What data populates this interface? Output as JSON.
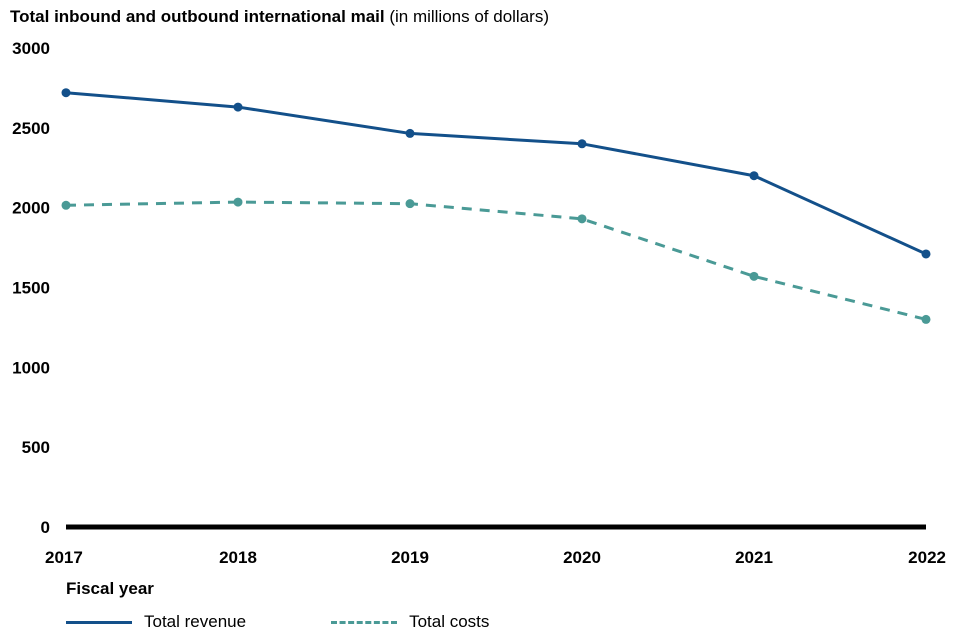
{
  "title": {
    "bold": "Total inbound and outbound international mail",
    "normal": "(in millions of dollars)"
  },
  "colors": {
    "revenue": "#13508a",
    "costs": "#4a9a96",
    "axis": "#000000"
  },
  "chart_data": {
    "type": "line",
    "x": [
      "2017",
      "2018",
      "2019",
      "2020",
      "2021",
      "2022"
    ],
    "xlabel": "Fiscal year",
    "ylabel": "",
    "ylim": [
      0,
      3000
    ],
    "yticks": [
      0,
      500,
      1000,
      1500,
      2000,
      2500,
      3000
    ],
    "grid": false,
    "legend_position": "bottom-left",
    "series": [
      {
        "name": "Total revenue",
        "style": "solid",
        "color": "#13508a",
        "values": [
          2720,
          2630,
          2465,
          2400,
          2200,
          1710
        ]
      },
      {
        "name": "Total costs",
        "style": "dashed",
        "color": "#4a9a96",
        "values": [
          2015,
          2035,
          2025,
          1930,
          1570,
          1300
        ]
      }
    ]
  }
}
